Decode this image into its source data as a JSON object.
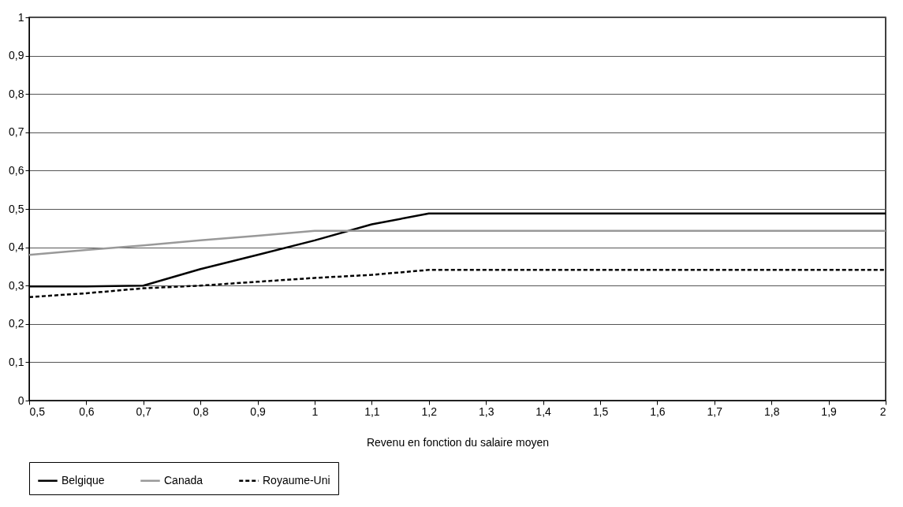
{
  "chart_data": {
    "type": "line",
    "xlabel": "Revenu en fonction du salaire moyen",
    "x": [
      0.5,
      0.6,
      0.7,
      0.8,
      0.9,
      1.0,
      1.1,
      1.2,
      1.3,
      1.4,
      1.5,
      1.6,
      1.7,
      1.8,
      1.9,
      2.0
    ],
    "series": [
      {
        "name": "Belgique",
        "color": "#000000",
        "line_style": "solid",
        "values": [
          0.298,
          0.298,
          0.3,
          0.343,
          0.38,
          0.418,
          0.46,
          0.488,
          0.488,
          0.488,
          0.488,
          0.488,
          0.488,
          0.488,
          0.488,
          0.488
        ]
      },
      {
        "name": "Canada",
        "color": "#999999",
        "line_style": "solid",
        "values": [
          0.38,
          0.393,
          0.405,
          0.418,
          0.43,
          0.443,
          0.443,
          0.443,
          0.443,
          0.443,
          0.443,
          0.443,
          0.443,
          0.443,
          0.443,
          0.443
        ]
      },
      {
        "name": "Royaume-Uni",
        "color": "#000000",
        "line_style": "dashed",
        "values": [
          0.27,
          0.28,
          0.293,
          0.3,
          0.31,
          0.32,
          0.328,
          0.341,
          0.341,
          0.341,
          0.341,
          0.341,
          0.341,
          0.341,
          0.341,
          0.341
        ]
      }
    ],
    "xlim": [
      0.5,
      2
    ],
    "xticks": [
      {
        "value": 0.5,
        "label": "0,5"
      },
      {
        "value": 0.6,
        "label": "0,6"
      },
      {
        "value": 0.7,
        "label": "0,7"
      },
      {
        "value": 0.8,
        "label": "0,8"
      },
      {
        "value": 0.9,
        "label": "0,9"
      },
      1,
      {
        "value": 1.1,
        "label": "1,1"
      },
      {
        "value": 1.2,
        "label": "1,2"
      },
      {
        "value": 1.3,
        "label": "1,3"
      },
      {
        "value": 1.4,
        "label": "1,4"
      },
      {
        "value": 1.5,
        "label": "1,5"
      },
      {
        "value": 1.6,
        "label": "1,6"
      },
      {
        "value": 1.7,
        "label": "1,7"
      },
      {
        "value": 1.8,
        "label": "1,8"
      },
      {
        "value": 1.9,
        "label": "1,9"
      },
      2
    ],
    "ylim": [
      0,
      1
    ],
    "yticks": [
      0,
      {
        "value": 0.1,
        "label": "0,1"
      },
      {
        "value": 0.2,
        "label": "0,2"
      },
      {
        "value": 0.3,
        "label": "0,3"
      },
      {
        "value": 0.4,
        "label": "0,4"
      },
      {
        "value": 0.5,
        "label": "0,5"
      },
      {
        "value": 0.6,
        "label": "0,6"
      },
      {
        "value": 0.7,
        "label": "0,7"
      },
      {
        "value": 0.8,
        "label": "0,8"
      },
      {
        "value": 0.9,
        "label": "0,9"
      },
      1
    ],
    "grid": "y",
    "legend": "bottom",
    "marker": "none"
  }
}
